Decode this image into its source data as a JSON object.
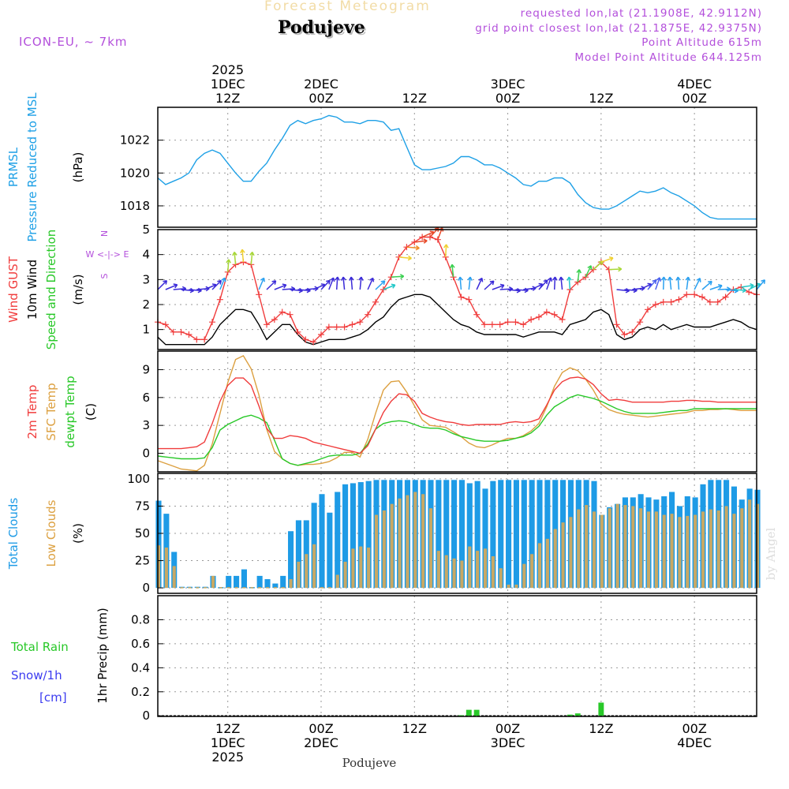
{
  "header": {
    "title": "Forecast Meteogram",
    "location": "Podujeve",
    "model": "ICON-EU, ~ 7km",
    "requested": "requested lon,lat (21.1908E, 42.9112N)",
    "grid_point": "grid point closest lon,lat (21.1875E, 42.9375N)",
    "point_altitude": "Point Altitude 615m",
    "model_altitude": "Model Point Altitude 644.125m",
    "footer_location": "Podujeve",
    "watermark": "by Angel"
  },
  "colors": {
    "pressure": "#1ea0e6",
    "gust": "#f03c3c",
    "wind": "#000000",
    "temp2m": "#f03c3c",
    "sfc": "#dca040",
    "dewpt": "#28c828",
    "total_cloud": "#1e9be6",
    "low_cloud": "#c8a864",
    "rain": "#28c828",
    "snow": "#3c3cf0",
    "purple": "#b34fdb"
  },
  "chart_data": [
    {
      "type": "line",
      "name": "pressure",
      "ylabel_lines": [
        "PRMSL",
        "Pressure Reduced to MSL"
      ],
      "unit": "(hPa)",
      "ylim": [
        1016.7,
        1024.0
      ],
      "yticks": [
        1018,
        1020,
        1022
      ],
      "time_range": [
        0,
        77
      ],
      "series": [
        {
          "name": "PRMSL",
          "t0": 0,
          "values": [
            1019.7,
            1019.3,
            1019.5,
            1019.7,
            1020.0,
            1020.8,
            1021.2,
            1021.4,
            1021.2,
            1020.6,
            1020.0,
            1019.5,
            1019.5,
            1020.1,
            1020.6,
            1021.4,
            1022.1,
            1022.9,
            1023.2,
            1023.0,
            1023.2,
            1023.3,
            1023.5,
            1023.4,
            1023.1,
            1023.1,
            1023.0,
            1023.2,
            1023.2,
            1023.1,
            1022.6,
            1022.7,
            1021.6,
            1020.5,
            1020.2,
            1020.2,
            1020.3,
            1020.4,
            1020.6,
            1021.0,
            1021.0,
            1020.8,
            1020.5,
            1020.5,
            1020.3,
            1020.0,
            1019.7,
            1019.3,
            1019.2,
            1019.5,
            1019.5,
            1019.7,
            1019.7,
            1019.4,
            1018.7,
            1018.2,
            1017.9,
            1017.8,
            1017.8,
            1018.0,
            1018.3,
            1018.6,
            1018.9,
            1018.8,
            1018.9,
            1019.1,
            1018.8,
            1018.6,
            1018.3,
            1018.0,
            1017.6,
            1017.3,
            1017.2,
            1017.2,
            1017.2,
            1017.2,
            1017.2,
            1017.2
          ]
        }
      ]
    },
    {
      "type": "line",
      "name": "wind",
      "ylabel_lines": [
        "Wind GUST",
        "10m Wind",
        "Speed and Direction"
      ],
      "unit": "(m/s)",
      "compass": [
        "N",
        "W <-|-> E",
        "S"
      ],
      "ylim": [
        0.2,
        5.0
      ],
      "yticks": [
        1,
        2,
        3,
        4,
        5
      ],
      "time_range": [
        0,
        77
      ],
      "series": [
        {
          "name": "Wind GUST",
          "t0": 0,
          "values": [
            1.3,
            1.2,
            0.9,
            0.9,
            0.8,
            0.6,
            0.6,
            1.3,
            2.2,
            3.3,
            3.6,
            3.7,
            3.6,
            2.4,
            1.2,
            1.4,
            1.7,
            1.6,
            0.9,
            0.6,
            0.5,
            0.8,
            1.1,
            1.1,
            1.1,
            1.2,
            1.3,
            1.6,
            2.1,
            2.6,
            3.1,
            3.9,
            4.3,
            4.5,
            4.7,
            4.7,
            4.6,
            3.9,
            3.1,
            2.3,
            2.2,
            1.6,
            1.2,
            1.2,
            1.2,
            1.3,
            1.3,
            1.2,
            1.4,
            1.5,
            1.7,
            1.6,
            1.4,
            2.6,
            2.9,
            3.1,
            3.4,
            3.7,
            3.4,
            1.2,
            0.8,
            0.9,
            1.3,
            1.8,
            2.0,
            2.1,
            2.1,
            2.2,
            2.4,
            2.4,
            2.3,
            2.1,
            2.1,
            2.3,
            2.6,
            2.7,
            2.5,
            2.4
          ]
        },
        {
          "name": "10m Wind",
          "t0": 0,
          "values": [
            0.7,
            0.4,
            0.4,
            0.4,
            0.4,
            0.4,
            0.4,
            0.7,
            1.2,
            1.5,
            1.8,
            1.8,
            1.7,
            1.2,
            0.6,
            0.9,
            1.2,
            1.2,
            0.8,
            0.5,
            0.4,
            0.5,
            0.6,
            0.6,
            0.6,
            0.7,
            0.8,
            1.0,
            1.3,
            1.5,
            1.9,
            2.2,
            2.3,
            2.4,
            2.4,
            2.3,
            2.0,
            1.7,
            1.4,
            1.2,
            1.1,
            0.9,
            0.8,
            0.8,
            0.8,
            0.8,
            0.8,
            0.7,
            0.8,
            0.9,
            0.9,
            0.9,
            0.8,
            1.2,
            1.3,
            1.4,
            1.7,
            1.8,
            1.6,
            0.8,
            0.6,
            0.7,
            1.0,
            1.1,
            1.0,
            1.2,
            1.0,
            1.1,
            1.2,
            1.1,
            1.1,
            1.1,
            1.2,
            1.3,
            1.4,
            1.3,
            1.1,
            1.0
          ]
        }
      ]
    },
    {
      "type": "line",
      "name": "temperature",
      "ylabel_lines": [
        "2m Temp",
        "SFC Temp",
        "dewpt Temp"
      ],
      "unit": "(C)",
      "ylim": [
        -2.0,
        11.0
      ],
      "yticks": [
        0,
        3,
        6,
        9
      ],
      "time_range": [
        0,
        77
      ],
      "series": [
        {
          "name": "2m Temp",
          "t0": 0,
          "values": [
            0.5,
            0.5,
            0.5,
            0.5,
            0.6,
            0.7,
            1.2,
            3.2,
            5.6,
            7.3,
            8.1,
            8.1,
            7.3,
            5.1,
            2.7,
            1.6,
            1.6,
            1.9,
            1.8,
            1.6,
            1.2,
            1.0,
            0.8,
            0.6,
            0.4,
            0.2,
            0.0,
            0.8,
            2.6,
            4.4,
            5.6,
            6.4,
            6.3,
            5.6,
            4.3,
            3.9,
            3.6,
            3.4,
            3.3,
            3.1,
            3.0,
            3.1,
            3.1,
            3.1,
            3.1,
            3.3,
            3.4,
            3.3,
            3.4,
            3.7,
            5.2,
            6.8,
            7.7,
            8.1,
            8.2,
            8.0,
            7.4,
            6.4,
            5.7,
            5.8,
            5.7,
            5.5,
            5.5,
            5.5,
            5.5,
            5.5,
            5.6,
            5.6,
            5.7,
            5.7,
            5.6,
            5.6,
            5.5,
            5.5,
            5.5,
            5.5,
            5.5,
            5.5
          ]
        },
        {
          "name": "SFC Temp",
          "t0": 0,
          "values": [
            -0.8,
            -1.1,
            -1.4,
            -1.7,
            -1.8,
            -1.9,
            -1.3,
            1.0,
            4.3,
            7.6,
            10.1,
            10.5,
            9.1,
            6.3,
            2.6,
            0.2,
            -0.6,
            -1.1,
            -1.3,
            -1.2,
            -1.2,
            -1.1,
            -0.9,
            -0.5,
            0.1,
            0.1,
            -0.4,
            1.5,
            4.3,
            6.8,
            7.7,
            7.8,
            6.6,
            5.1,
            3.6,
            3.0,
            2.9,
            2.8,
            2.3,
            1.8,
            1.1,
            0.7,
            0.6,
            0.9,
            1.3,
            1.6,
            1.6,
            1.9,
            2.4,
            3.2,
            5.0,
            7.2,
            8.7,
            9.2,
            8.9,
            8.0,
            6.8,
            5.3,
            4.7,
            4.4,
            4.2,
            4.1,
            4.0,
            3.9,
            4.0,
            4.1,
            4.2,
            4.3,
            4.4,
            4.6,
            4.6,
            4.7,
            4.7,
            4.8,
            4.7,
            4.6,
            4.6,
            4.6
          ]
        },
        {
          "name": "dewpt Temp",
          "t0": 0,
          "values": [
            -0.3,
            -0.4,
            -0.5,
            -0.6,
            -0.6,
            -0.6,
            -0.5,
            0.6,
            2.5,
            3.1,
            3.5,
            3.9,
            4.1,
            3.8,
            3.3,
            1.4,
            -0.6,
            -1.1,
            -1.3,
            -1.1,
            -0.9,
            -0.6,
            -0.3,
            -0.2,
            -0.2,
            -0.2,
            0.0,
            1.0,
            2.6,
            3.2,
            3.4,
            3.5,
            3.4,
            3.1,
            2.8,
            2.7,
            2.7,
            2.5,
            2.1,
            1.8,
            1.6,
            1.4,
            1.3,
            1.3,
            1.3,
            1.4,
            1.6,
            1.8,
            2.2,
            2.9,
            4.1,
            5.0,
            5.5,
            6.0,
            6.3,
            6.1,
            5.9,
            5.6,
            5.2,
            4.8,
            4.5,
            4.3,
            4.3,
            4.3,
            4.3,
            4.4,
            4.5,
            4.6,
            4.6,
            4.8,
            4.8,
            4.8,
            4.8,
            4.8,
            4.8,
            4.8,
            4.8,
            4.8
          ]
        }
      ]
    },
    {
      "type": "bar",
      "name": "clouds",
      "ylabel_lines": [
        "Total Clouds",
        "Low Clouds"
      ],
      "unit": "(%)",
      "ylim": [
        -5,
        105
      ],
      "yticks": [
        0,
        25,
        50,
        75,
        100
      ],
      "time_range": [
        0,
        77
      ],
      "series": [
        {
          "name": "Total Clouds",
          "t0": 0,
          "values": [
            80,
            68,
            33,
            1,
            1,
            1,
            1,
            11,
            0,
            11,
            11,
            17,
            0,
            11,
            8,
            4,
            11,
            52,
            62,
            62,
            78,
            86,
            69,
            88,
            95,
            96,
            97,
            98,
            99,
            99,
            99,
            99,
            99,
            99,
            99,
            99,
            99,
            99,
            99,
            99,
            96,
            98,
            91,
            98,
            99,
            99,
            99,
            99,
            99,
            99,
            99,
            99,
            99,
            99,
            99,
            99,
            98,
            67,
            74,
            77,
            83,
            83,
            86,
            83,
            81,
            84,
            88,
            75,
            84,
            83,
            95,
            99,
            99,
            99,
            93,
            81,
            91,
            90
          ]
        },
        {
          "name": "Low Clouds",
          "t0": 0,
          "values": [
            39,
            37,
            20,
            0,
            0,
            0,
            0,
            11,
            0,
            0,
            0,
            0,
            0,
            0,
            0,
            0,
            0,
            8,
            24,
            31,
            40,
            0,
            0,
            12,
            24,
            36,
            38,
            37,
            67,
            71,
            77,
            82,
            85,
            88,
            86,
            73,
            34,
            30,
            27,
            25,
            38,
            34,
            36,
            29,
            18,
            3,
            3,
            22,
            31,
            41,
            45,
            54,
            60,
            65,
            72,
            76,
            70,
            67,
            73,
            77,
            76,
            75,
            73,
            70,
            70,
            67,
            68,
            65,
            66,
            67,
            70,
            72,
            71,
            75,
            68,
            73,
            81,
            77
          ]
        }
      ]
    },
    {
      "type": "bar",
      "name": "precipitation",
      "ylabel_lines": [
        "Total  Rain",
        "Snow/1h",
        "[cm]"
      ],
      "unit": "1hr Precip (mm)",
      "ylim": [
        -0.005,
        1.0
      ],
      "yticks": [
        0,
        0.2,
        0.4,
        0.6,
        0.8
      ],
      "ytick_labels": [
        "0",
        "0.2",
        "0.4",
        "0.6",
        "0.8"
      ],
      "time_range": [
        0,
        77
      ],
      "series": [
        {
          "name": "Total Rain",
          "points": [
            [
              39,
              0.005
            ],
            [
              40,
              0.05
            ],
            [
              41,
              0.05
            ],
            [
              53,
              0.01
            ],
            [
              54,
              0.02
            ],
            [
              57,
              0.11
            ]
          ]
        }
      ]
    }
  ],
  "time_axis": {
    "start": "2025-12-01 03Z",
    "top_labels": [
      {
        "t": 9,
        "lines": [
          "2025",
          "1DEC",
          "12Z"
        ]
      },
      {
        "t": 21,
        "lines": [
          "2DEC",
          "00Z"
        ]
      },
      {
        "t": 33,
        "lines": [
          "12Z"
        ]
      },
      {
        "t": 45,
        "lines": [
          "3DEC",
          "00Z"
        ]
      },
      {
        "t": 57,
        "lines": [
          "12Z"
        ]
      },
      {
        "t": 69,
        "lines": [
          "4DEC",
          "00Z"
        ]
      }
    ],
    "bottom_labels": [
      {
        "t": 9,
        "lines": [
          "12Z",
          "1DEC",
          "2025"
        ]
      },
      {
        "t": 21,
        "lines": [
          "00Z",
          "2DEC"
        ]
      },
      {
        "t": 33,
        "lines": [
          "12Z"
        ]
      },
      {
        "t": 45,
        "lines": [
          "00Z",
          "3DEC"
        ]
      },
      {
        "t": 57,
        "lines": [
          "12Z"
        ]
      },
      {
        "t": 69,
        "lines": [
          "00Z",
          "4DEC"
        ]
      }
    ]
  }
}
